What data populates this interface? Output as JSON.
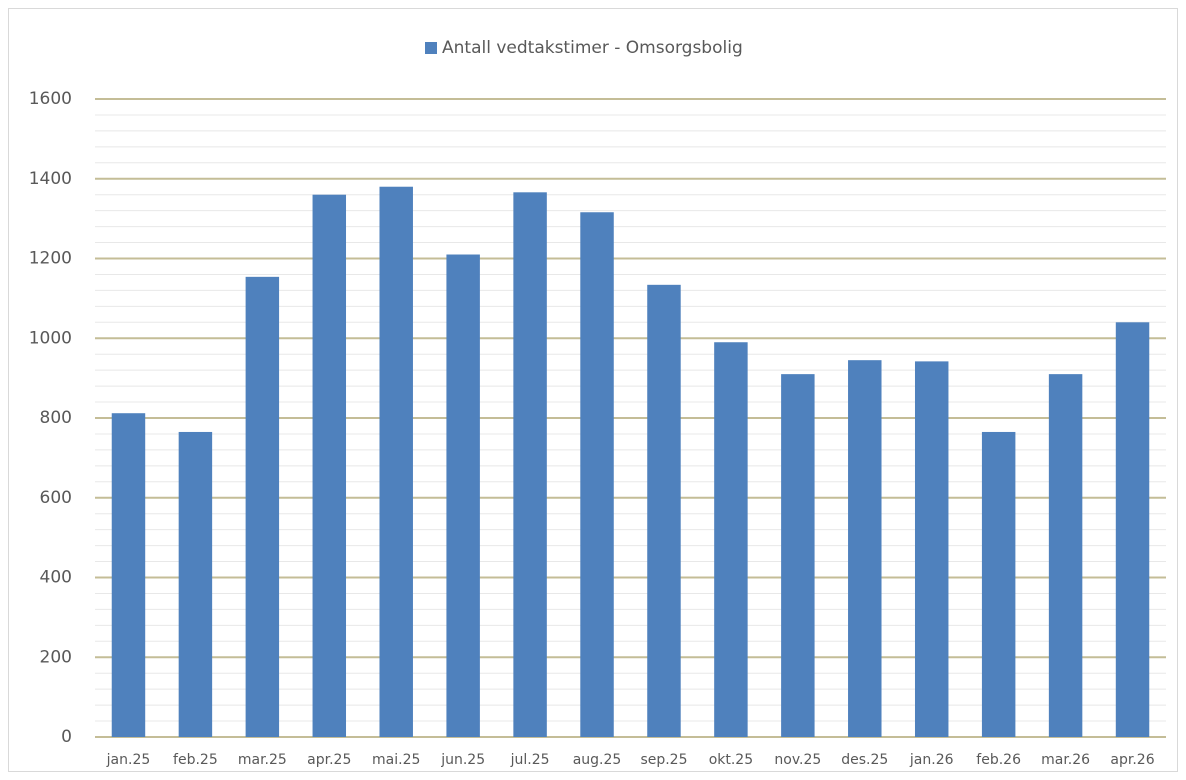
{
  "chart_data": {
    "type": "bar",
    "categories": [
      "jan.25",
      "feb.25",
      "mar.25",
      "apr.25",
      "mai.25",
      "jun.25",
      "jul.25",
      "aug.25",
      "sep.25",
      "okt.25",
      "nov.25",
      "des.25",
      "jan.26",
      "feb.26",
      "mar.26",
      "apr.26"
    ],
    "series": [
      {
        "name": "Antall vedtakstimer - Omsorgsbolig",
        "color": "#4f81bd",
        "values": [
          812,
          765,
          1154,
          1360,
          1380,
          1210,
          1366,
          1316,
          1134,
          990,
          910,
          945,
          942,
          765,
          910,
          1040
        ]
      }
    ],
    "ylim": [
      0,
      1600
    ],
    "yticks": [
      0,
      200,
      400,
      600,
      800,
      1000,
      1200,
      1400,
      1600
    ],
    "minor_yticks": [
      40,
      80,
      120,
      160,
      240,
      280,
      320,
      360,
      440,
      480,
      520,
      560,
      640,
      680,
      720,
      760,
      840,
      880,
      920,
      960,
      1040,
      1080,
      1120,
      1160,
      1240,
      1280,
      1320,
      1360,
      1440,
      1480,
      1520,
      1560
    ],
    "grid": true,
    "legend": "top"
  }
}
